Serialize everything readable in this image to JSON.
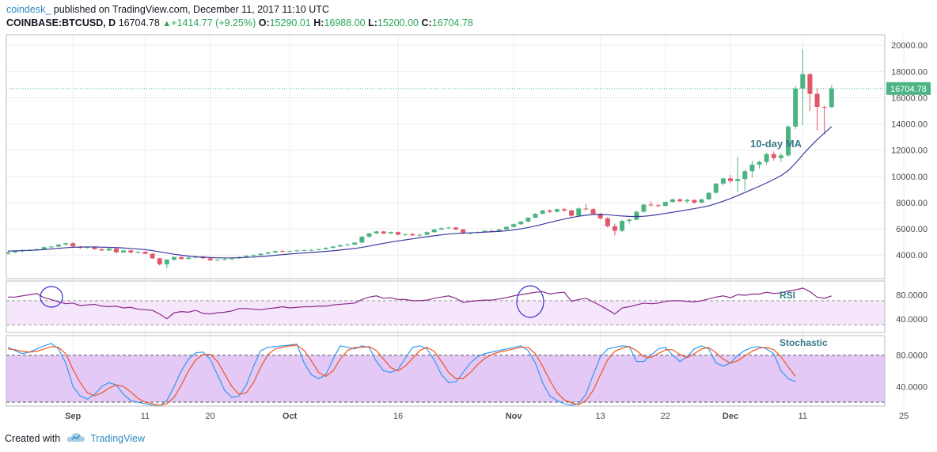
{
  "header": {
    "user": "coindesk_",
    "published": "published on TradingView.com, December 11, 2017 11:10 UTC",
    "symbol": "COINBASE:BTCUSD, D",
    "last": "16704.78",
    "change_arrow": "▲",
    "change": "+1414.77 (+9.25%)",
    "o_label": "O:",
    "o_val": "15290.01",
    "h_label": "H:",
    "h_val": "16988.00",
    "l_label": "L:",
    "l_val": "15200.00",
    "c_label": "C:",
    "c_val": "16704.78"
  },
  "footer": {
    "created_with": "Created with",
    "brand": "TradingView",
    "logo_icon": "tradingview-cloud-icon"
  },
  "colors": {
    "up": "#4cb482",
    "down": "#e05767",
    "ma": "#3a3aa0",
    "rsi": "#8a2a8a",
    "stoch_k": "#3399ee",
    "stoch_d": "#ee5522",
    "band": "#e3c9f5",
    "price_tag": "#4cb482"
  },
  "chart_data": [
    {
      "type": "candlestick",
      "title": "COINBASE:BTCUSD, D",
      "annotation": "10-day MA",
      "price_label": "16704.78",
      "ylim": [
        2200,
        20800
      ],
      "y_ticks": [
        "20000.00",
        "18000.00",
        "16000.00",
        "14000.00",
        "12000.00",
        "10000.00",
        "8000.00",
        "6000.00",
        "4000.00"
      ],
      "x_ticks": [
        "Sep",
        "11",
        "20",
        "Oct",
        "16",
        "Nov",
        "13",
        "22",
        "Dec",
        "11",
        "25"
      ],
      "start_date": "2017-08-23",
      "ohlc": [
        [
          4100,
          4250,
          4050,
          4200
        ],
        [
          4200,
          4350,
          4150,
          4300
        ],
        [
          4300,
          4450,
          4200,
          4350
        ],
        [
          4350,
          4450,
          4300,
          4380
        ],
        [
          4380,
          4500,
          4350,
          4450
        ],
        [
          4450,
          4650,
          4400,
          4600
        ],
        [
          4600,
          4700,
          4500,
          4650
        ],
        [
          4650,
          4850,
          4600,
          4800
        ],
        [
          4800,
          4950,
          4750,
          4900
        ],
        [
          4900,
          4980,
          4600,
          4650
        ],
        [
          4650,
          4700,
          4450,
          4550
        ],
        [
          4550,
          4650,
          4500,
          4600
        ],
        [
          4600,
          4650,
          4400,
          4450
        ],
        [
          4450,
          4500,
          4300,
          4350
        ],
        [
          4350,
          4550,
          4300,
          4500
        ],
        [
          4500,
          4550,
          4150,
          4200
        ],
        [
          4200,
          4400,
          4150,
          4350
        ],
        [
          4350,
          4400,
          4150,
          4200
        ],
        [
          4200,
          4300,
          4100,
          4250
        ],
        [
          4250,
          4300,
          4050,
          4100
        ],
        [
          4100,
          4150,
          3700,
          3750
        ],
        [
          3750,
          3800,
          3200,
          3300
        ],
        [
          3300,
          3700,
          3000,
          3650
        ],
        [
          3650,
          3900,
          3550,
          3850
        ],
        [
          3850,
          3900,
          3650,
          3700
        ],
        [
          3700,
          3900,
          3650,
          3800
        ],
        [
          3800,
          3950,
          3750,
          3900
        ],
        [
          3900,
          3950,
          3700,
          3750
        ],
        [
          3750,
          3800,
          3550,
          3600
        ],
        [
          3600,
          3700,
          3550,
          3650
        ],
        [
          3650,
          3750,
          3600,
          3700
        ],
        [
          3700,
          3800,
          3600,
          3750
        ],
        [
          3750,
          3900,
          3700,
          3850
        ],
        [
          3850,
          4000,
          3800,
          3950
        ],
        [
          3950,
          4050,
          3900,
          4000
        ],
        [
          4000,
          4150,
          3950,
          4100
        ],
        [
          4100,
          4250,
          4050,
          4200
        ],
        [
          4200,
          4350,
          4150,
          4300
        ],
        [
          4300,
          4400,
          4200,
          4250
        ],
        [
          4250,
          4350,
          4200,
          4300
        ],
        [
          4300,
          4400,
          4250,
          4350
        ],
        [
          4350,
          4420,
          4300,
          4380
        ],
        [
          4380,
          4450,
          4300,
          4400
        ],
        [
          4400,
          4500,
          4350,
          4450
        ],
        [
          4450,
          4600,
          4400,
          4550
        ],
        [
          4550,
          4700,
          4500,
          4650
        ],
        [
          4650,
          4800,
          4600,
          4750
        ],
        [
          4750,
          4900,
          4700,
          4800
        ],
        [
          4800,
          5000,
          4750,
          4950
        ],
        [
          4950,
          5450,
          4900,
          5400
        ],
        [
          5400,
          5700,
          5300,
          5650
        ],
        [
          5650,
          5850,
          5600,
          5800
        ],
        [
          5800,
          5850,
          5600,
          5650
        ],
        [
          5650,
          5800,
          5600,
          5750
        ],
        [
          5750,
          5800,
          5500,
          5550
        ],
        [
          5550,
          5650,
          5450,
          5600
        ],
        [
          5600,
          5700,
          5450,
          5500
        ],
        [
          5500,
          5600,
          5400,
          5550
        ],
        [
          5550,
          5800,
          5500,
          5750
        ],
        [
          5750,
          6000,
          5700,
          5950
        ],
        [
          5950,
          6100,
          5900,
          6050
        ],
        [
          6050,
          6150,
          6000,
          6100
        ],
        [
          6100,
          6150,
          5900,
          5950
        ],
        [
          5950,
          6000,
          5600,
          5650
        ],
        [
          5650,
          5750,
          5550,
          5700
        ],
        [
          5700,
          5800,
          5650,
          5750
        ],
        [
          5750,
          5900,
          5700,
          5850
        ],
        [
          5850,
          5900,
          5750,
          5800
        ],
        [
          5800,
          6000,
          5750,
          5950
        ],
        [
          5950,
          6200,
          5900,
          6150
        ],
        [
          6150,
          6400,
          6100,
          6350
        ],
        [
          6350,
          6600,
          6300,
          6550
        ],
        [
          6550,
          6900,
          6500,
          6850
        ],
        [
          6850,
          7200,
          6800,
          7150
        ],
        [
          7150,
          7450,
          7100,
          7400
        ],
        [
          7400,
          7500,
          7200,
          7300
        ],
        [
          7300,
          7550,
          7250,
          7500
        ],
        [
          7500,
          7600,
          7300,
          7400
        ],
        [
          7400,
          7450,
          6900,
          7000
        ],
        [
          7000,
          7650,
          6950,
          7550
        ],
        [
          7550,
          7900,
          7400,
          7500
        ],
        [
          7500,
          7600,
          7100,
          7150
        ],
        [
          7150,
          7200,
          6700,
          6800
        ],
        [
          6800,
          6900,
          6100,
          6200
        ],
        [
          6200,
          6400,
          5500,
          5850
        ],
        [
          5850,
          6700,
          5750,
          6600
        ],
        [
          6600,
          6800,
          6400,
          6700
        ],
        [
          6700,
          7400,
          6650,
          7300
        ],
        [
          7300,
          7900,
          7250,
          7850
        ],
        [
          7850,
          8100,
          7700,
          7800
        ],
        [
          7800,
          7900,
          7650,
          7750
        ],
        [
          7750,
          8100,
          7700,
          8050
        ],
        [
          8050,
          8300,
          8000,
          8250
        ],
        [
          8250,
          8350,
          8050,
          8100
        ],
        [
          8100,
          8300,
          7950,
          8200
        ],
        [
          8200,
          8250,
          7900,
          8000
        ],
        [
          8000,
          8300,
          7950,
          8250
        ],
        [
          8250,
          8800,
          8200,
          8750
        ],
        [
          8750,
          9500,
          8700,
          9450
        ],
        [
          9450,
          9900,
          9300,
          9850
        ],
        [
          9850,
          10100,
          9500,
          9650
        ],
        [
          9650,
          11500,
          8800,
          9800
        ],
        [
          9800,
          10500,
          8900,
          10400
        ],
        [
          10400,
          11200,
          9900,
          10900
        ],
        [
          10900,
          11200,
          10600,
          11100
        ],
        [
          11100,
          11800,
          10900,
          11700
        ],
        [
          11700,
          11900,
          11200,
          11400
        ],
        [
          11400,
          11800,
          11100,
          11600
        ],
        [
          11600,
          13900,
          11500,
          13800
        ],
        [
          13800,
          16900,
          13600,
          16700
        ],
        [
          16700,
          19700,
          13900,
          17800
        ],
        [
          17800,
          17900,
          15000,
          16300
        ],
        [
          16300,
          16700,
          13500,
          15300
        ],
        [
          15300,
          15400,
          13200,
          15290
        ],
        [
          15290,
          16988,
          15200,
          16704.78
        ]
      ],
      "ma10": [
        4300,
        4320,
        4340,
        4360,
        4380,
        4420,
        4460,
        4510,
        4560,
        4590,
        4610,
        4620,
        4620,
        4600,
        4590,
        4570,
        4540,
        4500,
        4460,
        4410,
        4340,
        4250,
        4150,
        4060,
        3990,
        3920,
        3870,
        3840,
        3810,
        3790,
        3780,
        3780,
        3800,
        3820,
        3850,
        3890,
        3930,
        3980,
        4030,
        4080,
        4120,
        4160,
        4200,
        4240,
        4280,
        4330,
        4380,
        4440,
        4500,
        4590,
        4680,
        4790,
        4890,
        4990,
        5080,
        5160,
        5240,
        5320,
        5400,
        5470,
        5540,
        5600,
        5640,
        5670,
        5690,
        5720,
        5750,
        5780,
        5810,
        5850,
        5920,
        6000,
        6100,
        6220,
        6350,
        6490,
        6620,
        6750,
        6860,
        6960,
        7040,
        7090,
        7100,
        7080,
        7020,
        6980,
        6950,
        6940,
        6960,
        7010,
        7090,
        7180,
        7260,
        7350,
        7450,
        7540,
        7640,
        7760,
        7920,
        8110,
        8310,
        8540,
        8770,
        9010,
        9250,
        9500,
        9770,
        10060,
        10450,
        11000,
        11650,
        12250,
        12800,
        13300,
        13800
      ],
      "ma_label_value": "10-day MA"
    },
    {
      "type": "line",
      "title": "RSI",
      "ylim": [
        20,
        100
      ],
      "y_ticks": [
        "80.0000",
        "40.0000"
      ],
      "band": [
        30,
        70
      ],
      "values": [
        76,
        76,
        78,
        80,
        82,
        75,
        72,
        68,
        65,
        66,
        62,
        63,
        64,
        61,
        60,
        61,
        58,
        59,
        56,
        55,
        54,
        48,
        40,
        50,
        52,
        51,
        54,
        49,
        48,
        50,
        51,
        53,
        57,
        57,
        56,
        55,
        57,
        58,
        60,
        58,
        59,
        60,
        60,
        61,
        61,
        63,
        64,
        65,
        66,
        72,
        76,
        78,
        74,
        75,
        72,
        72,
        70,
        70,
        71,
        74,
        76,
        78,
        74,
        67,
        69,
        70,
        71,
        71,
        73,
        75,
        78,
        80,
        82,
        84,
        85,
        81,
        83,
        84,
        69,
        72,
        74,
        68,
        62,
        55,
        48,
        58,
        60,
        63,
        66,
        65,
        66,
        69,
        70,
        70,
        69,
        68,
        70,
        73,
        76,
        78,
        75,
        80,
        79,
        81,
        81,
        84,
        82,
        83,
        86,
        88,
        91,
        85,
        76,
        74,
        78
      ]
    },
    {
      "type": "line",
      "title": "Stochastic",
      "ylim": [
        15,
        105
      ],
      "y_ticks": [
        "80.0000",
        "40.0000"
      ],
      "band": [
        20,
        80
      ],
      "series": [
        {
          "values": [
            90,
            86,
            82,
            84,
            88,
            92,
            95,
            88,
            70,
            40,
            28,
            24,
            30,
            40,
            45,
            42,
            30,
            22,
            20,
            18,
            16,
            15,
            22,
            40,
            60,
            75,
            83,
            84,
            75,
            55,
            35,
            26,
            28,
            42,
            66,
            86,
            90,
            91,
            92,
            93,
            94,
            70,
            55,
            50,
            55,
            75,
            92,
            90,
            88,
            92,
            90,
            72,
            60,
            58,
            62,
            76,
            90,
            92,
            88,
            74,
            55,
            45,
            46,
            58,
            70,
            78,
            82,
            84,
            86,
            88,
            90,
            92,
            86,
            70,
            45,
            28,
            22,
            18,
            16,
            18,
            30,
            55,
            78,
            88,
            90,
            92,
            91,
            72,
            72,
            80,
            88,
            90,
            80,
            72,
            78,
            88,
            92,
            88,
            70,
            66,
            70,
            80,
            86,
            90,
            91,
            88,
            82,
            60,
            50,
            46
          ]
        },
        {
          "values": [
            88,
            87,
            85,
            84,
            85,
            88,
            91,
            90,
            82,
            62,
            45,
            32,
            28,
            32,
            38,
            42,
            40,
            33,
            25,
            20,
            18,
            16,
            18,
            26,
            42,
            60,
            74,
            81,
            81,
            72,
            56,
            40,
            30,
            32,
            45,
            65,
            81,
            88,
            90,
            92,
            93,
            86,
            73,
            58,
            53,
            60,
            75,
            86,
            90,
            90,
            91,
            86,
            75,
            64,
            60,
            66,
            76,
            86,
            90,
            85,
            72,
            58,
            50,
            50,
            58,
            68,
            76,
            81,
            84,
            86,
            88,
            90,
            90,
            82,
            66,
            48,
            32,
            23,
            19,
            17,
            22,
            35,
            55,
            74,
            85,
            89,
            91,
            86,
            78,
            77,
            82,
            87,
            87,
            81,
            77,
            82,
            88,
            90,
            83,
            75,
            70,
            73,
            79,
            85,
            89,
            90,
            87,
            78,
            65,
            53
          ]
        }
      ]
    }
  ]
}
